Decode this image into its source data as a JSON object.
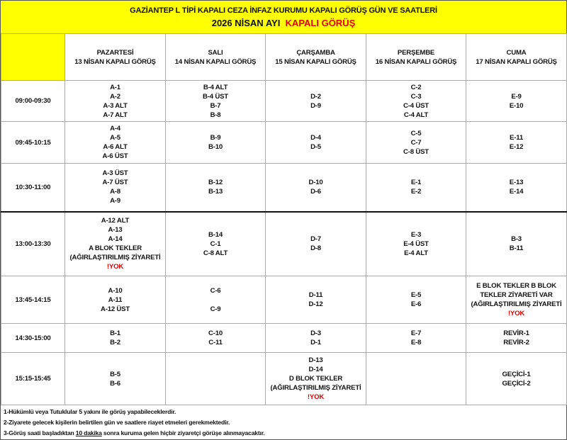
{
  "title": {
    "line1": "GAZİANTEP L TİPİ KAPALI CEZA İNFAZ KURUMU KAPALI GÖRÜŞ GÜN VE SAATLERİ",
    "line2_black": "2026 NİSAN  AYI",
    "line2_red": "KAPALI  GÖRÜŞ"
  },
  "colors": {
    "header_bg": "#ffff00",
    "highlight": "#e00000"
  },
  "days": [
    {
      "name": "PAZARTESİ",
      "date": "13  NİSAN KAPALI GÖRÜŞ"
    },
    {
      "name": "SALI",
      "date": "14 NİSAN  KAPALI GÖRÜŞ"
    },
    {
      "name": "ÇARŞAMBA",
      "date": "15 NİSAN KAPALI GÖRÜŞ"
    },
    {
      "name": "PERŞEMBE",
      "date": "16 NİSAN  KAPALI GÖRÜŞ"
    },
    {
      "name": "CUMA",
      "date": "17 NİSAN KAPALI GÖRÜŞ"
    }
  ],
  "rows": [
    {
      "time": "09:00-09:30",
      "cells": [
        [
          "A-1",
          "A-2",
          "A-3 ALT",
          "A-7 ALT"
        ],
        [
          "B-4 ALT",
          "B-4 ÜST",
          "B-7",
          "B-8"
        ],
        [
          "D-2",
          "D-9"
        ],
        [
          "C-2",
          "C-3",
          "C-4 ÜST",
          "C-4 ALT"
        ],
        [
          "E-9",
          "E-10"
        ]
      ]
    },
    {
      "time": "09:45-10:15",
      "cells": [
        [
          "A-4",
          "A-5",
          "A-6 ALT",
          "A-6 ÜST"
        ],
        [
          "B-9",
          "B-10"
        ],
        [
          "D-4",
          "D-5"
        ],
        [
          "C-5",
          "C-7",
          "C-8 ÜST"
        ],
        [
          "E-11",
          "E-12"
        ]
      ]
    },
    {
      "time": "10:30-11:00",
      "cells": [
        [
          "A-3 ÜST",
          "A-7 ÜST",
          "A-8",
          "A-9"
        ],
        [
          "B-12",
          "B-13"
        ],
        [
          "D-10",
          "D-6"
        ],
        [
          "E-1",
          "E-2"
        ],
        [
          "E-13",
          "E-14"
        ]
      ]
    },
    {
      "time": "13:00-13:30",
      "cells": [
        [
          "A-12 ALT",
          "A-13",
          "A-14",
          "A BLOK TEKLER",
          "(AĞIRLAŞTIRILMIŞ  ZİYARETİ",
          "!YOK"
        ],
        [
          "B-14",
          "C-1",
          "C-8 ALT"
        ],
        [
          "D-7",
          "D-8"
        ],
        [
          "E-3",
          "E-4 ÜST",
          "E-4 ALT"
        ],
        [
          "B-3",
          "B-11"
        ]
      ]
    },
    {
      "time": "13:45-14:15",
      "cells": [
        [
          "A-10",
          "A-11",
          "A-12 ÜST"
        ],
        [
          "C-6",
          "",
          "C-9"
        ],
        [
          "D-11",
          "D-12"
        ],
        [
          "E-5",
          "E-6"
        ],
        [
          "E BLOK TEKLER B BLOK",
          "TEKLER ZİYARETİ VAR",
          "(AĞIRLAŞTIRILMIŞ  ZİYARETİ",
          "!YOK"
        ]
      ]
    },
    {
      "time": "14:30-15:00",
      "cells": [
        [
          "B-1",
          "B-2"
        ],
        [
          "C-10",
          "C-11"
        ],
        [
          "D-3",
          "D-1"
        ],
        [
          "E-7",
          "E-8"
        ],
        [
          "REVİR-1",
          "REVİR-2"
        ]
      ]
    },
    {
      "time": "15:15-15:45",
      "cells": [
        [
          "B-5",
          "B-6"
        ],
        [],
        [
          "D-13",
          "D-14",
          "D BLOK TEKLER",
          "(AĞIRLAŞTIRILMIŞ  ZİYARETİ",
          "!YOK"
        ],
        [],
        [
          "GEÇİCİ-1",
          "GEÇİCİ-2"
        ]
      ]
    }
  ],
  "notes": {
    "n1": "1-Hükümlü veya Tutuklular 5 yakını  ile görüş yapabileceklerdir.",
    "n2": "2-Ziyarete gelecek kişilerin belirtilen gün ve saatlere riayet etmeleri gerekmektedir.",
    "n3_a": "3-Görüş saati başladıktan ",
    "n3_u": "10 dakika",
    "n3_b": " sonra kuruma gelen hiçbir ziyaretçi görüşe alınmayacaktır."
  }
}
